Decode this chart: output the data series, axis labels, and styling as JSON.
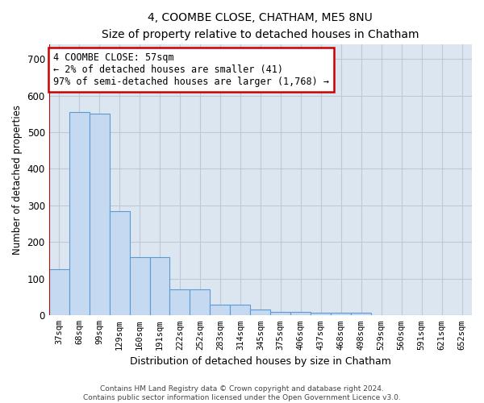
{
  "title": "4, COOMBE CLOSE, CHATHAM, ME5 8NU",
  "subtitle": "Size of property relative to detached houses in Chatham",
  "xlabel": "Distribution of detached houses by size in Chatham",
  "ylabel": "Number of detached properties",
  "categories": [
    "37sqm",
    "68sqm",
    "99sqm",
    "129sqm",
    "160sqm",
    "191sqm",
    "222sqm",
    "252sqm",
    "283sqm",
    "314sqm",
    "345sqm",
    "375sqm",
    "406sqm",
    "437sqm",
    "468sqm",
    "498sqm",
    "529sqm",
    "560sqm",
    "591sqm",
    "621sqm",
    "652sqm"
  ],
  "values": [
    125,
    555,
    550,
    285,
    160,
    160,
    70,
    70,
    30,
    30,
    17,
    10,
    10,
    8,
    8,
    8,
    0,
    0,
    0,
    0,
    0
  ],
  "bar_color": "#c5d9f0",
  "bar_edge_color": "#5b9bd5",
  "annotation_text": "4 COOMBE CLOSE: 57sqm\n← 2% of detached houses are smaller (41)\n97% of semi-detached houses are larger (1,768) →",
  "annotation_box_color": "#ffffff",
  "annotation_box_edge_color": "#cc0000",
  "vline_color": "#cc0000",
  "vline_x": -0.5,
  "footer1": "Contains HM Land Registry data © Crown copyright and database right 2024.",
  "footer2": "Contains public sector information licensed under the Open Government Licence v3.0.",
  "bg_color": "#ffffff",
  "grid_color": "#c0c8d8",
  "ylim": [
    0,
    740
  ],
  "yticks": [
    0,
    100,
    200,
    300,
    400,
    500,
    600,
    700
  ],
  "ax_bg_color": "#dce6f1"
}
